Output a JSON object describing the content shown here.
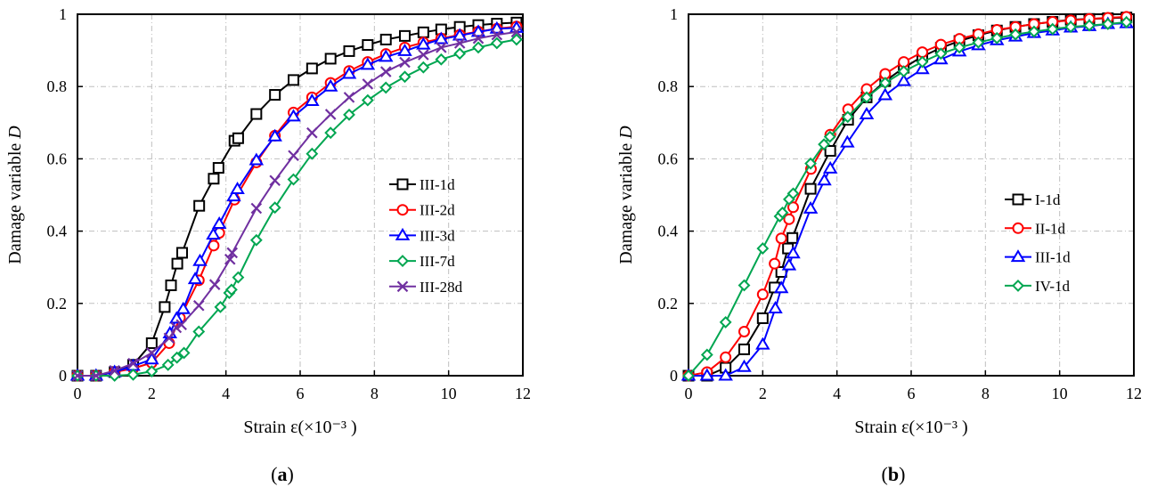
{
  "chart_data": [
    {
      "type": "line",
      "caption": "a",
      "xlabel": "Strain ε(×10⁻³ )",
      "ylabel": "Damage variable D",
      "xlim": [
        0,
        12
      ],
      "ylim": [
        0,
        1
      ],
      "xticks": [
        "0",
        "2",
        "4",
        "6",
        "8",
        "10",
        "12"
      ],
      "yticks": [
        "0",
        "0.2",
        "0.4",
        "0.6",
        "0.8",
        "1"
      ],
      "grid": true,
      "legend_position": "center-right",
      "series": [
        {
          "name": "III-1d",
          "color": "#000000",
          "marker": "square",
          "x": [
            0,
            0.5,
            1,
            1.5,
            2,
            2.35,
            2.52,
            2.69,
            2.82,
            3.28,
            3.67,
            3.8,
            4.23,
            4.33,
            4.82,
            5.32,
            5.82,
            6.32,
            6.82,
            7.32,
            7.82,
            8.31,
            8.82,
            9.32,
            9.8,
            10.3,
            10.8,
            11.3,
            11.83
          ],
          "y": [
            0,
            0,
            0.01,
            0.03,
            0.09,
            0.19,
            0.25,
            0.31,
            0.34,
            0.47,
            0.545,
            0.575,
            0.65,
            0.657,
            0.724,
            0.777,
            0.818,
            0.85,
            0.877,
            0.898,
            0.915,
            0.93,
            0.94,
            0.95,
            0.958,
            0.965,
            0.97,
            0.974,
            0.977
          ]
        },
        {
          "name": "III-2d",
          "color": "#ff0000",
          "marker": "circle",
          "x": [
            0,
            0.5,
            1,
            1.5,
            2,
            2.47,
            2.76,
            3.27,
            3.67,
            3.82,
            4.23,
            4.82,
            5.32,
            5.82,
            6.32,
            6.82,
            7.32,
            7.82,
            8.31,
            8.82,
            9.32,
            9.8,
            10.3,
            10.8,
            11.3,
            11.83
          ],
          "y": [
            0,
            0,
            0.01,
            0.02,
            0.036,
            0.09,
            0.16,
            0.264,
            0.36,
            0.395,
            0.487,
            0.59,
            0.664,
            0.728,
            0.77,
            0.81,
            0.843,
            0.868,
            0.89,
            0.908,
            0.922,
            0.933,
            0.943,
            0.952,
            0.96,
            0.966
          ]
        },
        {
          "name": "III-3d",
          "color": "#0000ff",
          "marker": "triangle",
          "x": [
            0,
            0.5,
            1,
            1.5,
            2,
            2.49,
            2.67,
            2.85,
            3.17,
            3.3,
            3.66,
            3.82,
            4.21,
            4.31,
            4.82,
            5.32,
            5.82,
            6.32,
            6.82,
            7.32,
            7.82,
            8.31,
            8.82,
            9.32,
            9.8,
            10.3,
            10.8,
            11.3,
            11.83
          ],
          "y": [
            0,
            0,
            0.01,
            0.027,
            0.045,
            0.117,
            0.158,
            0.184,
            0.267,
            0.317,
            0.39,
            0.42,
            0.496,
            0.516,
            0.596,
            0.662,
            0.717,
            0.76,
            0.8,
            0.835,
            0.86,
            0.882,
            0.898,
            0.916,
            0.931,
            0.941,
            0.951,
            0.96,
            0.962
          ]
        },
        {
          "name": "III-7d",
          "color": "#00a651",
          "marker": "diamond",
          "x": [
            0,
            0.5,
            1,
            1.5,
            2,
            2.44,
            2.68,
            2.87,
            3.27,
            3.85,
            4.09,
            4.15,
            4.33,
            4.82,
            5.32,
            5.82,
            6.32,
            6.82,
            7.32,
            7.82,
            8.31,
            8.82,
            9.32,
            9.8,
            10.3,
            10.8,
            11.3,
            11.83
          ],
          "y": [
            0,
            0,
            0,
            0.003,
            0.012,
            0.03,
            0.05,
            0.063,
            0.122,
            0.19,
            0.229,
            0.238,
            0.272,
            0.375,
            0.465,
            0.543,
            0.614,
            0.672,
            0.722,
            0.762,
            0.797,
            0.827,
            0.853,
            0.875,
            0.891,
            0.908,
            0.92,
            0.93
          ]
        },
        {
          "name": "III-28d",
          "color": "#7030a0",
          "marker": "x",
          "x": [
            0,
            0.5,
            1,
            1.5,
            2,
            2.47,
            2.66,
            2.8,
            3.27,
            3.7,
            4.11,
            4.17,
            4.82,
            5.32,
            5.82,
            6.32,
            6.82,
            7.32,
            7.82,
            8.31,
            8.82,
            9.32,
            9.8,
            10.3,
            10.8,
            11.3,
            11.83
          ],
          "y": [
            0,
            0,
            0.014,
            0.034,
            0.063,
            0.104,
            0.133,
            0.141,
            0.194,
            0.252,
            0.322,
            0.34,
            0.463,
            0.54,
            0.609,
            0.672,
            0.723,
            0.77,
            0.807,
            0.841,
            0.867,
            0.888,
            0.908,
            0.92,
            0.933,
            0.943,
            0.951
          ]
        }
      ]
    },
    {
      "type": "line",
      "caption": "b",
      "xlabel": "Strain ε(×10⁻³ )",
      "ylabel": "Damage variable D",
      "xlim": [
        0,
        12
      ],
      "ylim": [
        0,
        1
      ],
      "xticks": [
        "0",
        "2",
        "4",
        "6",
        "8",
        "10",
        "12"
      ],
      "yticks": [
        "0",
        "0.2",
        "0.4",
        "0.6",
        "0.8",
        "1"
      ],
      "grid": true,
      "legend_position": "center-right",
      "series": [
        {
          "name": "I-1d",
          "color": "#000000",
          "marker": "square",
          "x": [
            0,
            0.5,
            1,
            1.5,
            2,
            2.32,
            2.5,
            2.68,
            2.8,
            3.29,
            3.82,
            4.3,
            4.8,
            5.3,
            5.8,
            6.3,
            6.8,
            7.3,
            7.81,
            8.31,
            8.81,
            9.31,
            9.81,
            10.3,
            10.8,
            11.3,
            11.8
          ],
          "y": [
            0,
            0,
            0.022,
            0.073,
            0.159,
            0.244,
            0.287,
            0.352,
            0.381,
            0.517,
            0.622,
            0.708,
            0.77,
            0.815,
            0.852,
            0.883,
            0.907,
            0.926,
            0.942,
            0.955,
            0.965,
            0.973,
            0.979,
            0.985,
            0.987,
            0.989,
            0.991
          ]
        },
        {
          "name": "II-1d",
          "color": "#ff0000",
          "marker": "circle",
          "x": [
            0,
            0.5,
            1,
            1.5,
            2,
            2.32,
            2.5,
            2.71,
            2.82,
            3.3,
            3.82,
            4.3,
            4.8,
            5.3,
            5.8,
            6.3,
            6.8,
            7.3,
            7.81,
            8.31,
            8.81,
            9.31,
            9.81,
            10.3,
            10.8,
            11.3,
            11.8
          ],
          "y": [
            0,
            0.01,
            0.051,
            0.122,
            0.225,
            0.31,
            0.38,
            0.433,
            0.466,
            0.572,
            0.667,
            0.737,
            0.793,
            0.835,
            0.868,
            0.895,
            0.916,
            0.932,
            0.945,
            0.957,
            0.965,
            0.973,
            0.979,
            0.983,
            0.987,
            0.99,
            0.993
          ]
        },
        {
          "name": "III-1d",
          "color": "#0000ff",
          "marker": "triangle",
          "x": [
            0,
            0.5,
            1,
            1.5,
            2,
            2.34,
            2.5,
            2.71,
            2.82,
            3.29,
            3.66,
            3.82,
            4.28,
            4.8,
            5.3,
            5.8,
            6.3,
            6.8,
            7.3,
            7.81,
            8.31,
            8.81,
            9.31,
            9.81,
            10.3,
            10.8,
            11.3,
            11.8
          ],
          "y": [
            0,
            0,
            0,
            0.024,
            0.086,
            0.186,
            0.242,
            0.305,
            0.338,
            0.462,
            0.54,
            0.573,
            0.645,
            0.723,
            0.776,
            0.815,
            0.848,
            0.875,
            0.897,
            0.914,
            0.928,
            0.938,
            0.948,
            0.955,
            0.963,
            0.967,
            0.973,
            0.975
          ]
        },
        {
          "name": "IV-1d",
          "color": "#00a651",
          "marker": "diamond",
          "x": [
            0,
            0.5,
            1,
            1.5,
            2,
            2.46,
            2.53,
            2.71,
            2.82,
            3.29,
            3.65,
            3.81,
            4.29,
            4.8,
            5.3,
            5.8,
            6.3,
            6.8,
            7.3,
            7.81,
            8.31,
            8.81,
            9.31,
            9.81,
            10.3,
            10.8,
            11.3,
            11.8
          ],
          "y": [
            0,
            0.058,
            0.148,
            0.25,
            0.352,
            0.441,
            0.451,
            0.488,
            0.504,
            0.587,
            0.64,
            0.661,
            0.716,
            0.77,
            0.81,
            0.842,
            0.868,
            0.891,
            0.908,
            0.922,
            0.934,
            0.944,
            0.952,
            0.959,
            0.965,
            0.969,
            0.973,
            0.978
          ]
        }
      ]
    }
  ]
}
